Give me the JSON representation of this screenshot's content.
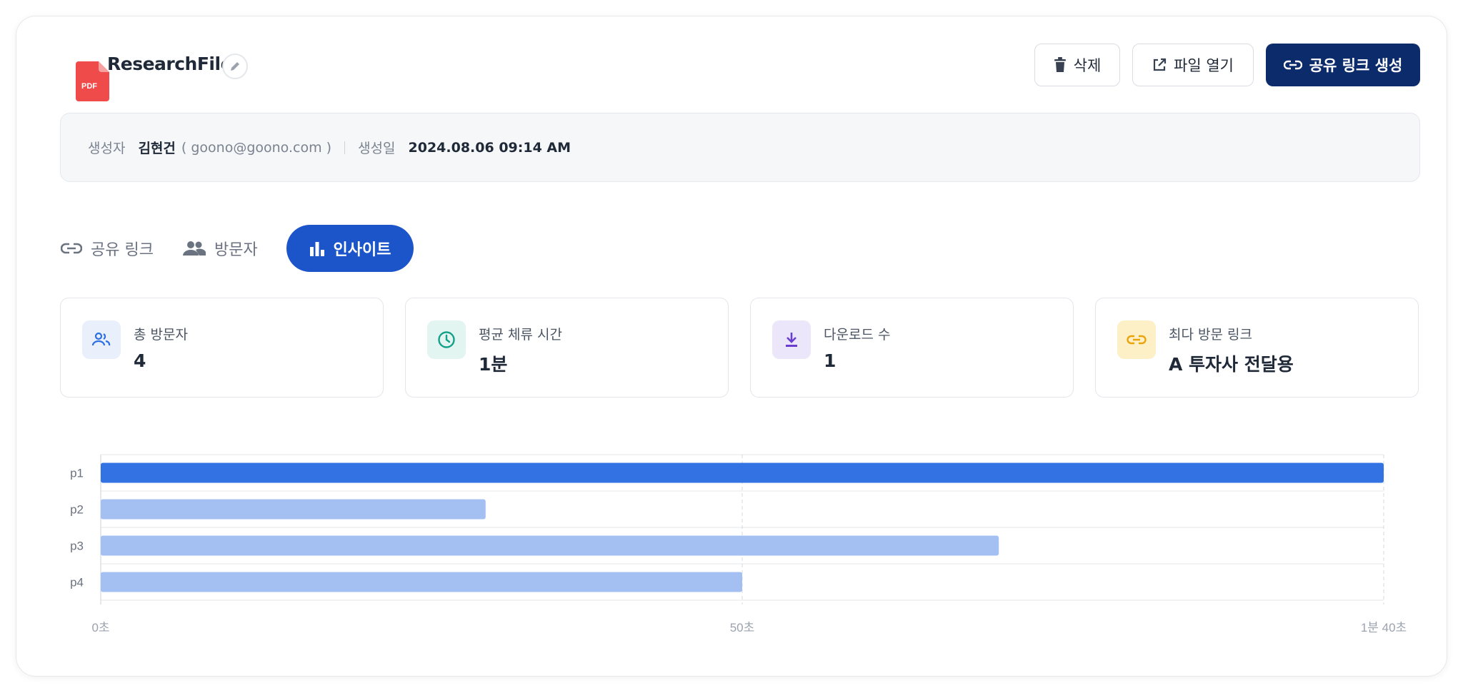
{
  "file": {
    "title": "ResearchFile",
    "type_badge": "PDF",
    "icon": "pdf-file-icon"
  },
  "actions": {
    "delete_label": "삭제",
    "open_label": "파일 열기",
    "share_label": "공유 링크 생성"
  },
  "meta": {
    "creator_label": "생성자",
    "creator_name": "김현건",
    "creator_email": "( goono@goono.com )",
    "created_label": "생성일",
    "created_value": "2024.08.06 09:14 AM"
  },
  "tabs": [
    {
      "label": "공유 링크",
      "icon": "link-icon",
      "active": false
    },
    {
      "label": "방문자",
      "icon": "people-icon",
      "active": false
    },
    {
      "label": "인사이트",
      "icon": "bar-chart-icon",
      "active": true
    }
  ],
  "stats": [
    {
      "label": "총 방문자",
      "value": "4",
      "icon": "users-icon",
      "color": "#2f6fe4",
      "bg": "#e9f0fc"
    },
    {
      "label": "평균 체류 시간",
      "value": "1분",
      "icon": "clock-icon",
      "color": "#14a08a",
      "bg": "#e3f5f1"
    },
    {
      "label": "다운로드 수",
      "value": "1",
      "icon": "download-icon",
      "color": "#6a3fcf",
      "bg": "#ece6fa"
    },
    {
      "label": "최다 방문 링크",
      "value": "A 투자사 전달용",
      "icon": "link-icon",
      "color": "#e9a40c",
      "bg": "#fdf0c7"
    }
  ],
  "chart_data": {
    "type": "bar",
    "orientation": "horizontal",
    "categories": [
      "p1",
      "p2",
      "p3",
      "p4"
    ],
    "values": [
      100,
      30,
      70,
      50
    ],
    "unit": "seconds",
    "xlim": [
      0,
      100
    ],
    "xticks": [
      0,
      50,
      100
    ],
    "xtick_labels": [
      "0초",
      "50초",
      "1분 40초"
    ],
    "highlight_index": 0,
    "colors": {
      "highlight": "#3272e3",
      "normal": "#a4c0f3"
    },
    "grid": true
  }
}
